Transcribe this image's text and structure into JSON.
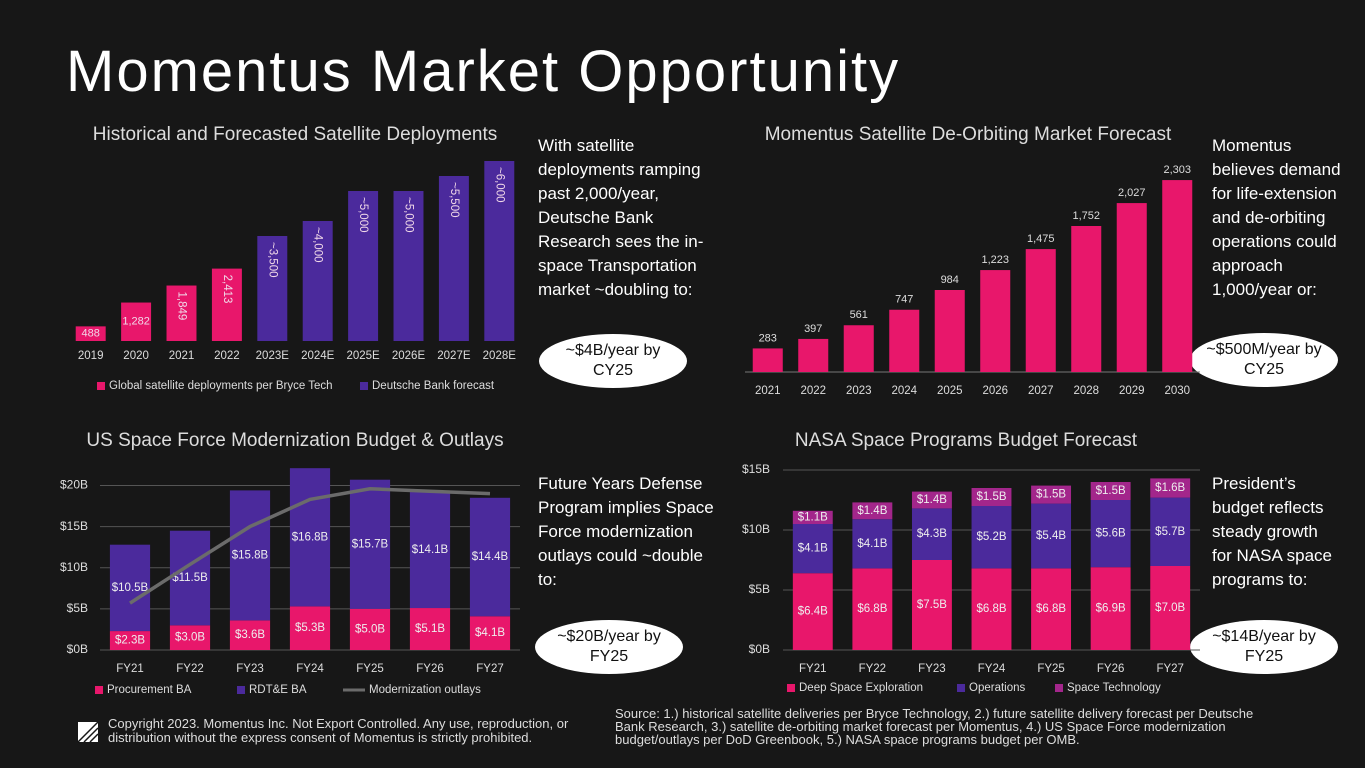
{
  "title": "Momentus Market Opportunity",
  "copyright": "Copyright 2023. Momentus Inc. Not Export Controlled. Any use, reproduction, or distribution without the express consent of Momentus is strictly prohibited.",
  "source": "Source: 1.) historical satellite deliveries per Bryce Technology, 2.) future satellite delivery forecast per Deutsche Bank Research, 3.) satellite de-orbiting market forecast per Momentus, 4.) US Space Force modernization budget/outlays per DoD Greenbook, 5.) NASA space programs budget per OMB.",
  "chart_data": [
    {
      "type": "bar",
      "title": "Historical and Forecasted Satellite Deployments",
      "annotation": "With satellite deployments ramping past 2,000/year, Deutsche Bank Research sees the in-space Transportation market ~doubling to:",
      "callout": "~$4B/year by CY25",
      "categories": [
        "2019",
        "2020",
        "2021",
        "2022",
        "2023E",
        "2024E",
        "2025E",
        "2026E",
        "2027E",
        "2028E"
      ],
      "ylim": [
        0,
        6000
      ],
      "legend": true,
      "series": [
        {
          "name": "Global satellite deployments per Bryce Tech",
          "color": "#e8176b",
          "values": [
            488,
            1282,
            1849,
            2413,
            null,
            null,
            null,
            null,
            null,
            null
          ],
          "value_labels": [
            "488",
            "1,282",
            "1,849",
            "2,413",
            null,
            null,
            null,
            null,
            null,
            null
          ]
        },
        {
          "name": "Deutsche Bank forecast",
          "color": "#4b2a9c",
          "values": [
            null,
            null,
            null,
            null,
            3500,
            4000,
            5000,
            5000,
            5500,
            6000
          ],
          "value_labels": [
            null,
            null,
            null,
            null,
            "~3,500",
            "~4,000",
            "~5,000",
            "~5,000",
            "~5,500",
            "~6,000"
          ]
        }
      ]
    },
    {
      "type": "bar",
      "title": "Momentus Satellite De-Orbiting Market Forecast",
      "annotation": "Momentus believes demand for life-extension and de-orbiting operations could approach 1,000/year or:",
      "callout": "~$500M/year by CY25",
      "categories": [
        "2021",
        "2022",
        "2023",
        "2024",
        "2025",
        "2026",
        "2027",
        "2028",
        "2029",
        "2030"
      ],
      "ylim": [
        0,
        2400
      ],
      "legend": false,
      "series": [
        {
          "name": "De-orbiting market",
          "color": "#e8176b",
          "values": [
            283,
            397,
            561,
            747,
            984,
            1223,
            1475,
            1752,
            2027,
            2303
          ],
          "value_labels": [
            "283",
            "397",
            "561",
            "747",
            "984",
            "1,223",
            "1,475",
            "1,752",
            "2,027",
            "2,303"
          ]
        }
      ]
    },
    {
      "type": "bar",
      "stacked": true,
      "title": "US Space Force Modernization Budget & Outlays",
      "annotation": "Future Years Defense Program implies Space Force modernization outlays could ~double to:",
      "callout": "~$20B/year by FY25",
      "categories": [
        "FY21",
        "FY22",
        "FY23",
        "FY24",
        "FY25",
        "FY26",
        "FY27"
      ],
      "ylim": [
        0,
        22
      ],
      "grid": true,
      "legend": true,
      "yticks": [
        {
          "value": 0,
          "label": "$0B"
        },
        {
          "value": 5,
          "label": "$5B"
        },
        {
          "value": 10,
          "label": "$10B"
        },
        {
          "value": 15,
          "label": "$15B"
        },
        {
          "value": 20,
          "label": "$20B"
        }
      ],
      "series": [
        {
          "name": "Procurement BA",
          "color": "#e8176b",
          "values": [
            2.3,
            3.0,
            3.6,
            5.3,
            5.0,
            5.1,
            4.1
          ],
          "value_labels": [
            "$2.3B",
            "$3.0B",
            "$3.6B",
            "$5.3B",
            "$5.0B",
            "$5.1B",
            "$4.1B"
          ]
        },
        {
          "name": "RDT&E BA",
          "color": "#4b2a9c",
          "values": [
            10.5,
            11.5,
            15.8,
            16.8,
            15.7,
            14.1,
            14.4
          ],
          "value_labels": [
            "$10.5B",
            "$11.5B",
            "$15.8B",
            "$16.8B",
            "$15.7B",
            "$14.1B",
            "$14.4B"
          ]
        },
        {
          "name": "Modernization outlays",
          "color": "#6b6b6b",
          "type": "line",
          "values": [
            5.7,
            10.4,
            15.0,
            18.3,
            19.6,
            19.3,
            19.0
          ]
        }
      ]
    },
    {
      "type": "bar",
      "stacked": true,
      "title": "NASA Space Programs Budget Forecast",
      "annotation": "President’s budget reflects steady growth for NASA space programs to:",
      "callout": "~$14B/year by FY25",
      "categories": [
        "FY21",
        "FY22",
        "FY23",
        "FY24",
        "FY25",
        "FY26",
        "FY27"
      ],
      "ylim": [
        0,
        15
      ],
      "grid": true,
      "legend": true,
      "yticks": [
        {
          "value": 0,
          "label": "$0B"
        },
        {
          "value": 5,
          "label": "$5B"
        },
        {
          "value": 10,
          "label": "$10B"
        },
        {
          "value": 15,
          "label": "$15B"
        }
      ],
      "series": [
        {
          "name": "Deep Space Exploration",
          "color": "#e8176b",
          "values": [
            6.4,
            6.8,
            7.5,
            6.8,
            6.8,
            6.9,
            7.0
          ],
          "value_labels": [
            "$6.4B",
            "$6.8B",
            "$7.5B",
            "$6.8B",
            "$6.8B",
            "$6.9B",
            "$7.0B"
          ]
        },
        {
          "name": "Operations",
          "color": "#4b2a9c",
          "values": [
            4.1,
            4.1,
            4.3,
            5.2,
            5.4,
            5.6,
            5.7
          ],
          "value_labels": [
            "$4.1B",
            "$4.1B",
            "$4.3B",
            "$5.2B",
            "$5.4B",
            "$5.6B",
            "$5.7B"
          ]
        },
        {
          "name": "Space Technology",
          "color": "#a3268b",
          "values": [
            1.1,
            1.4,
            1.4,
            1.5,
            1.5,
            1.5,
            1.6
          ],
          "value_labels": [
            "$1.1B",
            "$1.4B",
            "$1.4B",
            "$1.5B",
            "$1.5B",
            "$1.5B",
            "$1.6B"
          ]
        }
      ]
    }
  ]
}
